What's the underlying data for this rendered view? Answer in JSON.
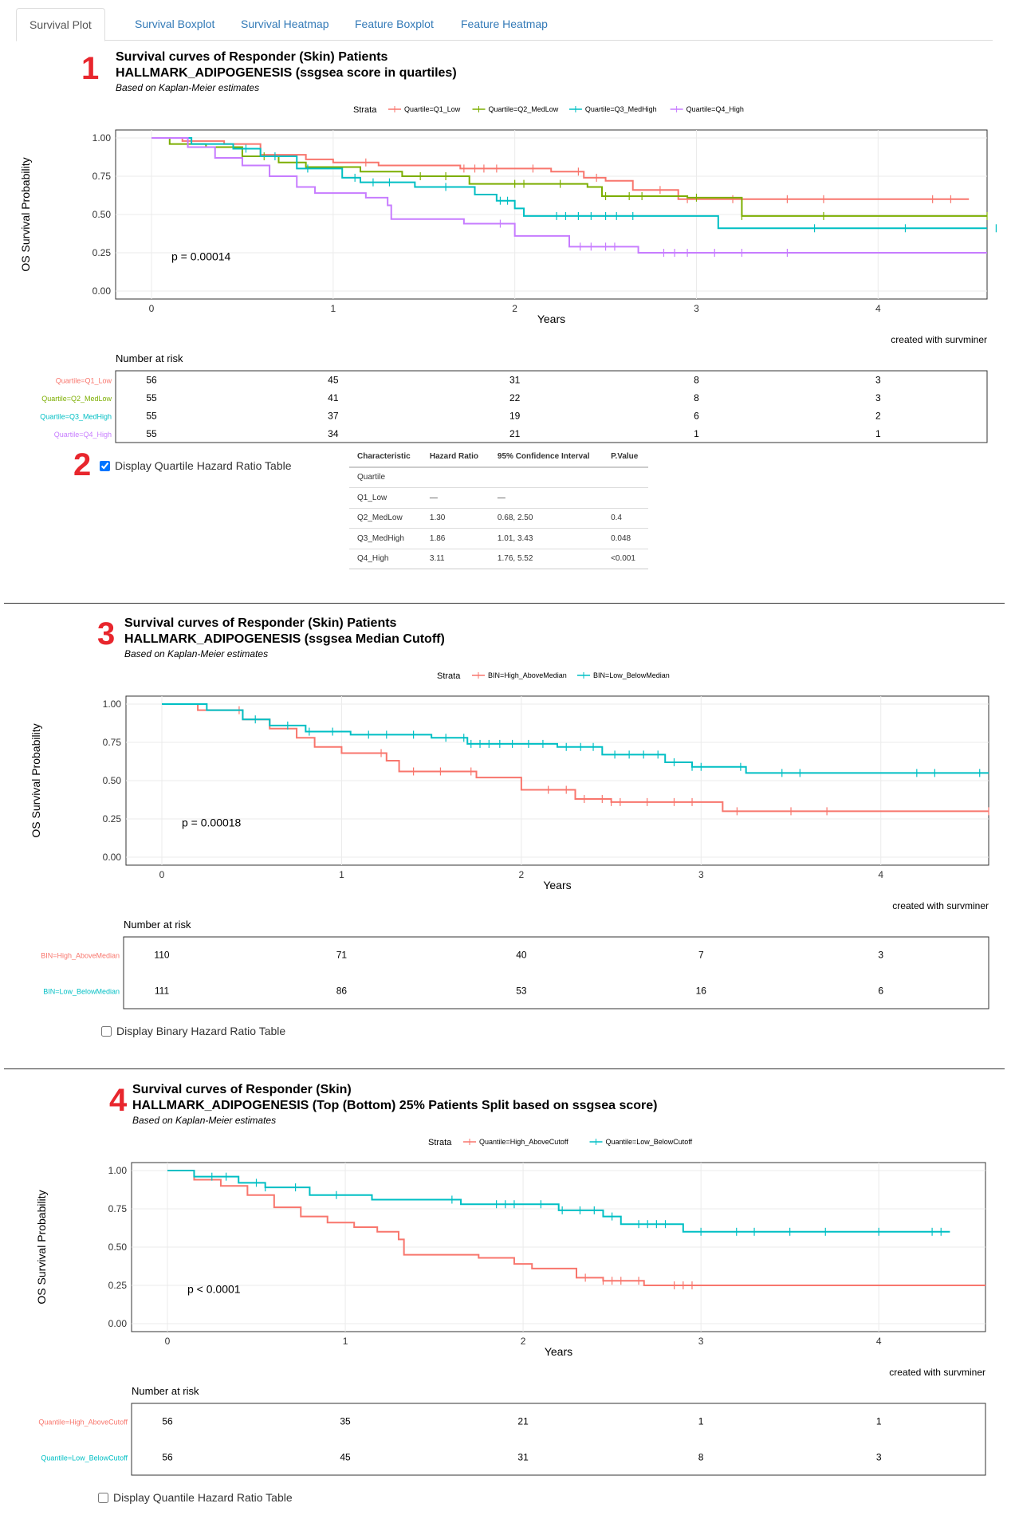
{
  "tabs": [
    {
      "label": "Survival Plot",
      "active": true
    },
    {
      "label": "Survival Boxplot",
      "active": false
    },
    {
      "label": "Survival Heatmap",
      "active": false
    },
    {
      "label": "Feature Boxplot",
      "active": false
    },
    {
      "label": "Feature Heatmap",
      "active": false
    }
  ],
  "colors": {
    "red": "#F8766D",
    "olive": "#7CAE00",
    "cyan": "#00BFC4",
    "purple": "#C77CFF",
    "marker": "#e8262d"
  },
  "hr_table": {
    "headers": [
      "Characteristic",
      "Hazard Ratio",
      "95% Confidence Interval",
      "P.Value"
    ],
    "rows": [
      [
        "Quartile",
        "",
        "",
        ""
      ],
      [
        "Q1_Low",
        "—",
        "—",
        ""
      ],
      [
        "Q2_MedLow",
        "1.30",
        "0.68, 2.50",
        "0.4"
      ],
      [
        "Q3_MedHigh",
        "1.86",
        "1.01, 3.43",
        "0.048"
      ],
      [
        "Q4_High",
        "3.11",
        "1.76, 5.52",
        "<0.001"
      ]
    ]
  },
  "sections": [
    {
      "marker": "1",
      "title_line1": "Survival curves of Responder (Skin) Patients",
      "title_line2": "HALLMARK_ADIPOGENESIS (ssgsea score in quartiles)",
      "subtitle": "Based on Kaplan-Meier estimates",
      "checkbox_label": "Display Quartile Hazard Ratio Table",
      "checkbox_checked": true
    },
    {
      "marker": "3",
      "title_line1": "Survival curves of Responder (Skin) Patients",
      "title_line2": "HALLMARK_ADIPOGENESIS (ssgsea Median Cutoff)",
      "subtitle": "Based on Kaplan-Meier estimates",
      "checkbox_label": "Display Binary Hazard Ratio Table",
      "checkbox_checked": false
    },
    {
      "marker": "4",
      "title_line1": "Survival curves of Responder (Skin)",
      "title_line2": "HALLMARK_ADIPOGENESIS (Top (Bottom) 25% Patients Split based on ssgsea score)",
      "subtitle": "Based on Kaplan-Meier estimates",
      "checkbox_label": "Display Quantile Hazard Ratio Table",
      "checkbox_checked": false
    }
  ],
  "marker2": "2",
  "chart_data": [
    {
      "type": "line",
      "title": "Survival curves of Responder (Skin) Patients HALLMARK_ADIPOGENESIS (ssgsea score in quartiles)",
      "xlabel": "Years",
      "ylabel": "OS Survival Probability",
      "xlim": [
        0,
        4.6
      ],
      "ylim": [
        0,
        1
      ],
      "x_ticks": [
        0,
        1,
        2,
        3,
        4
      ],
      "y_ticks": [
        "0.00",
        "0.25",
        "0.50",
        "0.75",
        "1.00"
      ],
      "legend_title": "Strata",
      "legend_position": "top",
      "pvalue": "p = 0.00014",
      "caption": "created with survminer",
      "risk_title": "Number at risk",
      "risk_times": [
        0,
        1,
        2,
        3,
        4
      ],
      "series": [
        {
          "name": "Quartile=Q1_Low",
          "color": "#F8766D",
          "risk": [
            56,
            45,
            31,
            8,
            3
          ],
          "steps": [
            [
              0,
              1.0
            ],
            [
              0.17,
              0.98
            ],
            [
              0.4,
              0.96
            ],
            [
              0.6,
              0.89
            ],
            [
              0.85,
              0.86
            ],
            [
              1.0,
              0.84
            ],
            [
              1.25,
              0.82
            ],
            [
              1.7,
              0.8
            ],
            [
              2.2,
              0.78
            ],
            [
              2.38,
              0.74
            ],
            [
              2.5,
              0.72
            ],
            [
              2.65,
              0.66
            ],
            [
              2.9,
              0.6
            ],
            [
              4.5,
              0.6
            ]
          ],
          "censors": [
            1.18,
            1.72,
            1.78,
            1.83,
            1.9,
            2.1,
            2.35,
            2.45,
            2.8,
            2.95,
            3.2,
            3.5,
            3.7,
            4.3,
            4.4
          ]
        },
        {
          "name": "Quartile=Q2_MedLow",
          "color": "#7CAE00",
          "risk": [
            55,
            41,
            22,
            8,
            3
          ],
          "steps": [
            [
              0,
              1.0
            ],
            [
              0.1,
              0.96
            ],
            [
              0.3,
              0.94
            ],
            [
              0.5,
              0.88
            ],
            [
              0.7,
              0.84
            ],
            [
              0.85,
              0.81
            ],
            [
              1.15,
              0.78
            ],
            [
              1.38,
              0.75
            ],
            [
              1.75,
              0.7
            ],
            [
              2.4,
              0.68
            ],
            [
              2.48,
              0.62
            ],
            [
              2.95,
              0.61
            ],
            [
              3.25,
              0.49
            ],
            [
              4.6,
              0.49
            ]
          ],
          "censors": [
            0.62,
            1.48,
            1.62,
            2.0,
            2.05,
            2.25,
            2.5,
            2.63,
            2.7,
            3.0,
            3.25,
            3.7,
            4.6
          ]
        },
        {
          "name": "Quartile=Q3_MedHigh",
          "color": "#00BFC4",
          "risk": [
            55,
            37,
            19,
            6,
            2
          ],
          "steps": [
            [
              0,
              1.0
            ],
            [
              0.22,
              0.96
            ],
            [
              0.45,
              0.93
            ],
            [
              0.6,
              0.88
            ],
            [
              0.8,
              0.8
            ],
            [
              1.05,
              0.74
            ],
            [
              1.15,
              0.71
            ],
            [
              1.45,
              0.68
            ],
            [
              1.78,
              0.63
            ],
            [
              1.9,
              0.59
            ],
            [
              2.0,
              0.54
            ],
            [
              2.05,
              0.49
            ],
            [
              3.12,
              0.41
            ],
            [
              4.6,
              0.41
            ]
          ],
          "censors": [
            0.52,
            0.68,
            0.86,
            1.12,
            1.22,
            1.31,
            1.62,
            1.92,
            1.96,
            2.23,
            2.28,
            2.35,
            2.42,
            2.5,
            2.56,
            2.65,
            3.65,
            4.15,
            4.65
          ]
        },
        {
          "name": "Quartile=Q4_High",
          "color": "#C77CFF",
          "risk": [
            55,
            34,
            21,
            1,
            1
          ],
          "steps": [
            [
              0,
              1.0
            ],
            [
              0.2,
              0.94
            ],
            [
              0.35,
              0.87
            ],
            [
              0.5,
              0.82
            ],
            [
              0.65,
              0.75
            ],
            [
              0.8,
              0.68
            ],
            [
              0.9,
              0.64
            ],
            [
              1.18,
              0.61
            ],
            [
              1.3,
              0.56
            ],
            [
              1.32,
              0.47
            ],
            [
              1.72,
              0.44
            ],
            [
              2.0,
              0.36
            ],
            [
              2.3,
              0.29
            ],
            [
              2.68,
              0.25
            ],
            [
              4.6,
              0.25
            ]
          ],
          "censors": [
            1.92,
            2.36,
            2.42,
            2.5,
            2.55,
            2.82,
            2.88,
            2.95,
            3.1,
            3.25,
            3.5
          ]
        }
      ]
    },
    {
      "type": "line",
      "title": "Survival curves of Responder (Skin) Patients HALLMARK_ADIPOGENESIS (ssgsea Median Cutoff)",
      "xlabel": "Years",
      "ylabel": "OS Survival Probability",
      "xlim": [
        0,
        4.6
      ],
      "ylim": [
        0,
        1
      ],
      "x_ticks": [
        0,
        1,
        2,
        3,
        4
      ],
      "y_ticks": [
        "0.00",
        "0.25",
        "0.50",
        "0.75",
        "1.00"
      ],
      "legend_title": "Strata",
      "legend_position": "top",
      "pvalue": "p = 0.00018",
      "caption": "created with survminer",
      "risk_title": "Number at risk",
      "risk_times": [
        0,
        1,
        2,
        3,
        4
      ],
      "series": [
        {
          "name": "BIN=High_AboveMedian",
          "color": "#F8766D",
          "risk": [
            110,
            71,
            40,
            7,
            3
          ],
          "steps": [
            [
              0,
              1.0
            ],
            [
              0.2,
              0.96
            ],
            [
              0.45,
              0.9
            ],
            [
              0.6,
              0.84
            ],
            [
              0.75,
              0.78
            ],
            [
              0.85,
              0.72
            ],
            [
              1.0,
              0.68
            ],
            [
              1.25,
              0.63
            ],
            [
              1.32,
              0.56
            ],
            [
              1.75,
              0.52
            ],
            [
              2.0,
              0.44
            ],
            [
              2.3,
              0.38
            ],
            [
              2.5,
              0.36
            ],
            [
              3.12,
              0.3
            ],
            [
              4.6,
              0.3
            ]
          ],
          "censors": [
            0.43,
            1.22,
            1.4,
            1.55,
            1.72,
            2.15,
            2.25,
            2.35,
            2.45,
            2.5,
            2.55,
            2.7,
            2.85,
            2.95,
            3.2,
            3.5,
            3.7,
            4.6
          ]
        },
        {
          "name": "BIN=Low_BelowMedian",
          "color": "#00BFC4",
          "risk": [
            111,
            86,
            53,
            16,
            6
          ],
          "steps": [
            [
              0,
              1.0
            ],
            [
              0.25,
              0.96
            ],
            [
              0.45,
              0.9
            ],
            [
              0.6,
              0.86
            ],
            [
              0.8,
              0.82
            ],
            [
              1.05,
              0.8
            ],
            [
              1.5,
              0.78
            ],
            [
              1.7,
              0.74
            ],
            [
              2.2,
              0.72
            ],
            [
              2.45,
              0.67
            ],
            [
              2.8,
              0.62
            ],
            [
              2.95,
              0.59
            ],
            [
              3.25,
              0.55
            ],
            [
              4.6,
              0.55
            ]
          ],
          "censors": [
            0.52,
            0.7,
            0.82,
            0.95,
            1.15,
            1.25,
            1.4,
            1.58,
            1.68,
            1.72,
            1.77,
            1.82,
            1.88,
            1.95,
            2.04,
            2.12,
            2.25,
            2.33,
            2.4,
            2.52,
            2.6,
            2.68,
            2.76,
            2.85,
            2.95,
            3.0,
            3.22,
            3.45,
            3.55,
            4.2,
            4.3,
            4.55
          ]
        }
      ]
    },
    {
      "type": "line",
      "title": "Survival curves of Responder (Skin) HALLMARK_ADIPOGENESIS (Top (Bottom) 25% Patients Split based on ssgsea score)",
      "xlabel": "Years",
      "ylabel": "OS Survival Probability",
      "xlim": [
        0,
        4.6
      ],
      "ylim": [
        0,
        1
      ],
      "x_ticks": [
        0,
        1,
        2,
        3,
        4
      ],
      "y_ticks": [
        "0.00",
        "0.25",
        "0.50",
        "0.75",
        "1.00"
      ],
      "legend_title": "Strata",
      "legend_position": "top",
      "pvalue": "p < 0.0001",
      "caption": "created with survminer",
      "risk_title": "Number at risk",
      "risk_times": [
        0,
        1,
        2,
        3,
        4
      ],
      "series": [
        {
          "name": "Quantile=High_AboveCutoff",
          "color": "#F8766D",
          "risk": [
            56,
            35,
            21,
            1,
            1
          ],
          "steps": [
            [
              0,
              1.0
            ],
            [
              0.15,
              0.94
            ],
            [
              0.3,
              0.9
            ],
            [
              0.45,
              0.84
            ],
            [
              0.6,
              0.76
            ],
            [
              0.75,
              0.7
            ],
            [
              0.9,
              0.66
            ],
            [
              1.05,
              0.63
            ],
            [
              1.18,
              0.6
            ],
            [
              1.3,
              0.55
            ],
            [
              1.33,
              0.45
            ],
            [
              1.75,
              0.43
            ],
            [
              1.95,
              0.39
            ],
            [
              2.05,
              0.36
            ],
            [
              2.3,
              0.3
            ],
            [
              2.45,
              0.28
            ],
            [
              2.68,
              0.25
            ],
            [
              4.6,
              0.25
            ]
          ],
          "censors": [
            2.35,
            2.45,
            2.5,
            2.55,
            2.65,
            2.85,
            2.9,
            2.95
          ]
        },
        {
          "name": "Quantile=Low_BelowCutoff",
          "color": "#00BFC4",
          "risk": [
            56,
            45,
            31,
            8,
            3
          ],
          "steps": [
            [
              0,
              1.0
            ],
            [
              0.15,
              0.96
            ],
            [
              0.4,
              0.92
            ],
            [
              0.55,
              0.89
            ],
            [
              0.8,
              0.84
            ],
            [
              1.15,
              0.81
            ],
            [
              1.65,
              0.78
            ],
            [
              2.2,
              0.74
            ],
            [
              2.45,
              0.7
            ],
            [
              2.55,
              0.65
            ],
            [
              2.9,
              0.6
            ],
            [
              4.4,
              0.6
            ]
          ],
          "censors": [
            0.25,
            0.33,
            0.5,
            0.55,
            0.72,
            0.95,
            1.6,
            1.85,
            1.9,
            1.95,
            2.1,
            2.22,
            2.32,
            2.4,
            2.5,
            2.65,
            2.7,
            2.75,
            2.8,
            3.0,
            3.2,
            3.3,
            3.5,
            3.7,
            4.0,
            4.3,
            4.35
          ]
        }
      ]
    }
  ]
}
